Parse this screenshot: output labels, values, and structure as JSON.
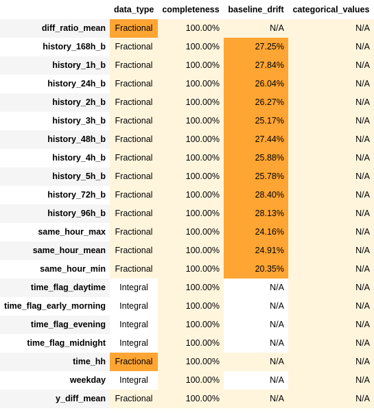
{
  "columns": [
    "data_type",
    "completeness",
    "baseline_drift",
    "categorical_values"
  ],
  "rows": [
    {
      "name": "diff_ratio_mean",
      "data_type": "Fractional",
      "completeness": "100.00%",
      "baseline_drift": "N/A",
      "categorical_values": "N/A",
      "highlight": [
        "data_type"
      ]
    },
    {
      "name": "history_168h_b",
      "data_type": "Fractional",
      "completeness": "100.00%",
      "baseline_drift": "27.25%",
      "categorical_values": "N/A",
      "highlight": [
        "baseline_drift"
      ]
    },
    {
      "name": "history_1h_b",
      "data_type": "Fractional",
      "completeness": "100.00%",
      "baseline_drift": "27.84%",
      "categorical_values": "N/A",
      "highlight": [
        "baseline_drift"
      ]
    },
    {
      "name": "history_24h_b",
      "data_type": "Fractional",
      "completeness": "100.00%",
      "baseline_drift": "26.04%",
      "categorical_values": "N/A",
      "highlight": [
        "baseline_drift"
      ]
    },
    {
      "name": "history_2h_b",
      "data_type": "Fractional",
      "completeness": "100.00%",
      "baseline_drift": "26.27%",
      "categorical_values": "N/A",
      "highlight": [
        "baseline_drift"
      ]
    },
    {
      "name": "history_3h_b",
      "data_type": "Fractional",
      "completeness": "100.00%",
      "baseline_drift": "25.17%",
      "categorical_values": "N/A",
      "highlight": [
        "baseline_drift"
      ]
    },
    {
      "name": "history_48h_b",
      "data_type": "Fractional",
      "completeness": "100.00%",
      "baseline_drift": "27.44%",
      "categorical_values": "N/A",
      "highlight": [
        "baseline_drift"
      ]
    },
    {
      "name": "history_4h_b",
      "data_type": "Fractional",
      "completeness": "100.00%",
      "baseline_drift": "25.88%",
      "categorical_values": "N/A",
      "highlight": [
        "baseline_drift"
      ]
    },
    {
      "name": "history_5h_b",
      "data_type": "Fractional",
      "completeness": "100.00%",
      "baseline_drift": "25.78%",
      "categorical_values": "N/A",
      "highlight": [
        "baseline_drift"
      ]
    },
    {
      "name": "history_72h_b",
      "data_type": "Fractional",
      "completeness": "100.00%",
      "baseline_drift": "28.40%",
      "categorical_values": "N/A",
      "highlight": [
        "baseline_drift"
      ]
    },
    {
      "name": "history_96h_b",
      "data_type": "Fractional",
      "completeness": "100.00%",
      "baseline_drift": "28.13%",
      "categorical_values": "N/A",
      "highlight": [
        "baseline_drift"
      ]
    },
    {
      "name": "same_hour_max",
      "data_type": "Fractional",
      "completeness": "100.00%",
      "baseline_drift": "24.16%",
      "categorical_values": "N/A",
      "highlight": [
        "baseline_drift"
      ]
    },
    {
      "name": "same_hour_mean",
      "data_type": "Fractional",
      "completeness": "100.00%",
      "baseline_drift": "24.91%",
      "categorical_values": "N/A",
      "highlight": [
        "baseline_drift"
      ]
    },
    {
      "name": "same_hour_min",
      "data_type": "Fractional",
      "completeness": "100.00%",
      "baseline_drift": "20.35%",
      "categorical_values": "N/A",
      "highlight": [
        "baseline_drift"
      ]
    },
    {
      "name": "time_flag_daytime",
      "data_type": "Integral",
      "completeness": "100.00%",
      "baseline_drift": "N/A",
      "categorical_values": "N/A",
      "highlight": []
    },
    {
      "name": "time_flag_early_morning",
      "data_type": "Integral",
      "completeness": "100.00%",
      "baseline_drift": "N/A",
      "categorical_values": "N/A",
      "highlight": []
    },
    {
      "name": "time_flag_evening",
      "data_type": "Integral",
      "completeness": "100.00%",
      "baseline_drift": "N/A",
      "categorical_values": "N/A",
      "highlight": []
    },
    {
      "name": "time_flag_midnight",
      "data_type": "Integral",
      "completeness": "100.00%",
      "baseline_drift": "N/A",
      "categorical_values": "N/A",
      "highlight": []
    },
    {
      "name": "time_hh",
      "data_type": "Fractional",
      "completeness": "100.00%",
      "baseline_drift": "N/A",
      "categorical_values": "N/A",
      "highlight": [
        "data_type"
      ]
    },
    {
      "name": "weekday",
      "data_type": "Integral",
      "completeness": "100.00%",
      "baseline_drift": "N/A",
      "categorical_values": "N/A",
      "highlight": []
    },
    {
      "name": "y_diff_mean",
      "data_type": "Fractional",
      "completeness": "100.00%",
      "baseline_drift": "N/A",
      "categorical_values": "N/A",
      "highlight": []
    }
  ],
  "colors": {
    "highlight": "#ffa533",
    "light": "#fff5dd",
    "white": "#ffffff",
    "row_header_stripe": "#f5f5f5"
  }
}
